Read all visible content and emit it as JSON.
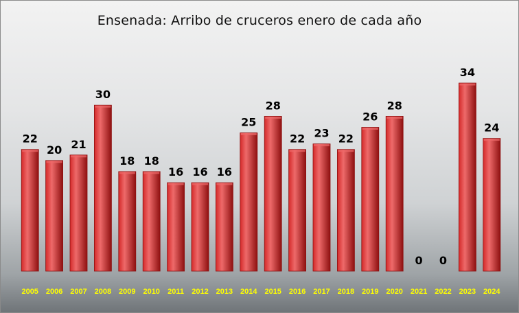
{
  "chart_data": {
    "type": "bar",
    "title": "Ensenada: Arribo de cruceros enero de cada año",
    "categories": [
      "2005",
      "2006",
      "2007",
      "2008",
      "2009",
      "2010",
      "2011",
      "2012",
      "2013",
      "2014",
      "2015",
      "2016",
      "2017",
      "2018",
      "2019",
      "2020",
      "2021",
      "2022",
      "2023",
      "2024"
    ],
    "values": [
      22,
      20,
      21,
      30,
      18,
      18,
      16,
      16,
      16,
      25,
      28,
      22,
      23,
      22,
      26,
      28,
      0,
      0,
      34,
      24
    ],
    "ylim": [
      0,
      34
    ],
    "grid": false,
    "legend": "none",
    "colors": {
      "bar": "#d42a2a",
      "bar_highlight": "#ee6a6a",
      "bar_shadow": "#8e1010",
      "category_label": "#ffff00",
      "value_label": "#000000"
    }
  }
}
